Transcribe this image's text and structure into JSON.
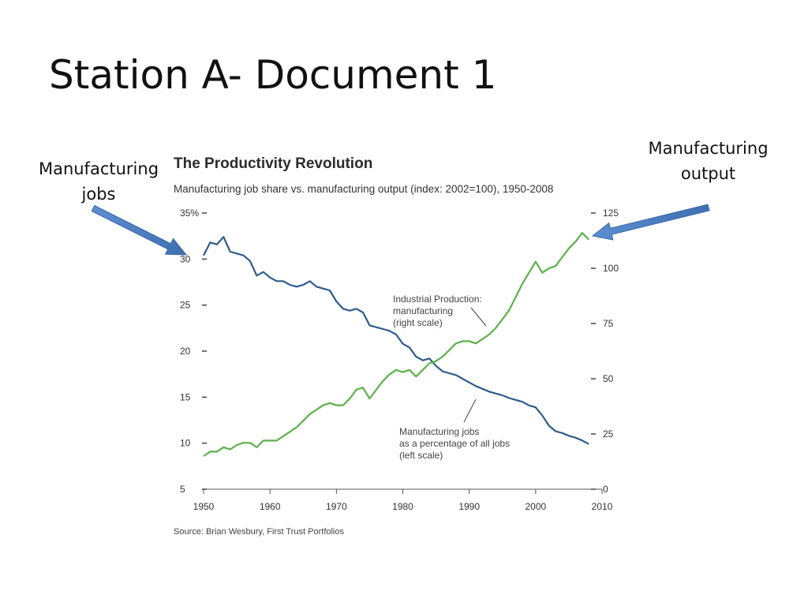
{
  "slide": {
    "title": "Station A- Document 1",
    "callout_jobs": [
      "Manufacturing",
      "jobs"
    ],
    "callout_output": [
      "Manufacturing",
      "output"
    ],
    "arrow_color": "#4F81BD"
  },
  "chart_data": {
    "type": "line",
    "title": "The Productivity Revolution",
    "subtitle": "Manufacturing job share vs. manufacturing output (index: 2002=100), 1950-2008",
    "source": "Source: Brian Wesbury, First Trust Portfolios",
    "x_ticks": [
      "1950",
      "1960",
      "1970",
      "1980",
      "1990",
      "2000",
      "2010"
    ],
    "xlim": [
      1950,
      2010
    ],
    "left_axis": {
      "ylim": [
        5,
        35
      ],
      "tick_values": [
        5,
        10,
        15,
        20,
        25,
        30,
        35
      ],
      "tick_labels": [
        "5",
        "10",
        "15",
        "20",
        "25",
        "30",
        "35%"
      ]
    },
    "right_axis": {
      "ylim": [
        0,
        125
      ],
      "tick_values": [
        0,
        25,
        50,
        75,
        100,
        125
      ],
      "tick_labels": [
        "0",
        "25",
        "50",
        "75",
        "100",
        "125"
      ]
    },
    "grid": false,
    "legend": "none",
    "series": [
      {
        "name": "Manufacturing jobs as a percentage of all jobs (left scale)",
        "axis": "left",
        "color": "#2E5B8C",
        "label_lines": [
          "Manufacturing jobs",
          "as a percentage of all jobs",
          "(left scale)"
        ],
        "points": [
          [
            1950,
            30.4
          ],
          [
            1951,
            31.8
          ],
          [
            1952,
            31.6
          ],
          [
            1953,
            32.4
          ],
          [
            1954,
            30.8
          ],
          [
            1955,
            30.6
          ],
          [
            1956,
            30.4
          ],
          [
            1957,
            29.8
          ],
          [
            1958,
            28.2
          ],
          [
            1959,
            28.6
          ],
          [
            1960,
            28.0
          ],
          [
            1961,
            27.6
          ],
          [
            1962,
            27.6
          ],
          [
            1963,
            27.2
          ],
          [
            1964,
            27.0
          ],
          [
            1965,
            27.2
          ],
          [
            1966,
            27.6
          ],
          [
            1967,
            27.0
          ],
          [
            1968,
            26.8
          ],
          [
            1969,
            26.6
          ],
          [
            1970,
            25.4
          ],
          [
            1971,
            24.6
          ],
          [
            1972,
            24.4
          ],
          [
            1973,
            24.6
          ],
          [
            1974,
            24.2
          ],
          [
            1975,
            22.8
          ],
          [
            1976,
            22.6
          ],
          [
            1977,
            22.4
          ],
          [
            1978,
            22.2
          ],
          [
            1979,
            21.8
          ],
          [
            1980,
            20.8
          ],
          [
            1981,
            20.4
          ],
          [
            1982,
            19.4
          ],
          [
            1983,
            19.0
          ],
          [
            1984,
            19.2
          ],
          [
            1985,
            18.4
          ],
          [
            1986,
            17.8
          ],
          [
            1987,
            17.6
          ],
          [
            1988,
            17.4
          ],
          [
            1989,
            17.0
          ],
          [
            1990,
            16.6
          ],
          [
            1991,
            16.2
          ],
          [
            1992,
            15.9
          ],
          [
            1993,
            15.6
          ],
          [
            1994,
            15.4
          ],
          [
            1995,
            15.2
          ],
          [
            1996,
            14.9
          ],
          [
            1997,
            14.7
          ],
          [
            1998,
            14.5
          ],
          [
            1999,
            14.1
          ],
          [
            2000,
            13.9
          ],
          [
            2001,
            13.0
          ],
          [
            2002,
            11.9
          ],
          [
            2003,
            11.3
          ],
          [
            2004,
            11.1
          ],
          [
            2005,
            10.8
          ],
          [
            2006,
            10.6
          ],
          [
            2007,
            10.3
          ],
          [
            2008,
            9.9
          ]
        ]
      },
      {
        "name": "Industrial Production: manufacturing (right scale)",
        "axis": "right",
        "color": "#5DB04B",
        "label_lines": [
          "Industrial Production:",
          "manufacturing",
          "(right scale)"
        ],
        "points": [
          [
            1950,
            15
          ],
          [
            1951,
            17
          ],
          [
            1952,
            17
          ],
          [
            1953,
            19
          ],
          [
            1954,
            18
          ],
          [
            1955,
            20
          ],
          [
            1956,
            21
          ],
          [
            1957,
            21
          ],
          [
            1958,
            19
          ],
          [
            1959,
            22
          ],
          [
            1960,
            22
          ],
          [
            1961,
            22
          ],
          [
            1962,
            24
          ],
          [
            1963,
            26
          ],
          [
            1964,
            28
          ],
          [
            1965,
            31
          ],
          [
            1966,
            34
          ],
          [
            1967,
            36
          ],
          [
            1968,
            38
          ],
          [
            1969,
            39
          ],
          [
            1970,
            38
          ],
          [
            1971,
            38
          ],
          [
            1972,
            41
          ],
          [
            1973,
            45
          ],
          [
            1974,
            46
          ],
          [
            1975,
            41
          ],
          [
            1976,
            45
          ],
          [
            1977,
            49
          ],
          [
            1978,
            52
          ],
          [
            1979,
            54
          ],
          [
            1980,
            53
          ],
          [
            1981,
            54
          ],
          [
            1982,
            51
          ],
          [
            1983,
            54
          ],
          [
            1984,
            57
          ],
          [
            1985,
            58
          ],
          [
            1986,
            60
          ],
          [
            1987,
            63
          ],
          [
            1988,
            66
          ],
          [
            1989,
            67
          ],
          [
            1990,
            67
          ],
          [
            1991,
            66
          ],
          [
            1992,
            68
          ],
          [
            1993,
            70
          ],
          [
            1994,
            73
          ],
          [
            1995,
            77
          ],
          [
            1996,
            81
          ],
          [
            1997,
            87
          ],
          [
            1998,
            93
          ],
          [
            1999,
            98
          ],
          [
            2000,
            103
          ],
          [
            2001,
            98
          ],
          [
            2002,
            100
          ],
          [
            2003,
            101
          ],
          [
            2004,
            105
          ],
          [
            2005,
            109
          ],
          [
            2006,
            112
          ],
          [
            2007,
            116
          ],
          [
            2008,
            113
          ]
        ]
      }
    ]
  }
}
